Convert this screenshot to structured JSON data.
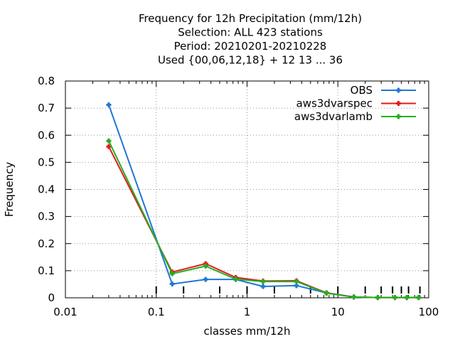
{
  "chart_data": {
    "type": "line",
    "title_lines": [
      "Frequency  for 12h Precipitation (mm/12h)",
      "Selection: ALL    423 stations",
      "Period: 20210201-20210228",
      "Used {00,06,12,18} + 12 13 ... 36"
    ],
    "xlabel": "classes mm/12h",
    "ylabel": "Frequency",
    "x_scale": "log",
    "xlim": [
      0.01,
      100
    ],
    "ylim": [
      0,
      0.8
    ],
    "x_ticks": [
      0.01,
      0.1,
      1,
      10,
      100
    ],
    "x_tick_labels": [
      "0.01",
      "0.1",
      "1",
      "10",
      "100"
    ],
    "y_ticks": [
      0,
      0.1,
      0.2,
      0.3,
      0.4,
      0.5,
      0.6,
      0.7,
      0.8
    ],
    "y_tick_labels": [
      "0",
      "0.1",
      "0.2",
      "0.3",
      "0.4",
      "0.5",
      "0.6",
      "0.7",
      "0.8"
    ],
    "grid": true,
    "legend_position": "top-right",
    "class_limits": [
      0.1,
      0.2,
      0.5,
      1,
      2,
      5,
      10,
      20,
      30,
      40,
      50,
      60,
      80
    ],
    "x": [
      0.03,
      0.15,
      0.35,
      0.75,
      1.5,
      3.5,
      7.5,
      15,
      27.5,
      42.5,
      57.5,
      77.5
    ],
    "series": [
      {
        "name": "OBS",
        "color": "#1f77d4",
        "values": [
          0.712,
          0.051,
          0.068,
          0.068,
          0.042,
          0.045,
          0.018,
          0.003,
          0.001,
          0.001,
          0.001,
          0.001
        ]
      },
      {
        "name": "aws3dvarspec",
        "color": "#e41a1c",
        "values": [
          0.558,
          0.095,
          0.126,
          0.075,
          0.062,
          0.063,
          0.018,
          0.003,
          0.001,
          0.001,
          0.001,
          0.001
        ]
      },
      {
        "name": "aws3dvarlamb",
        "color": "#21b021",
        "values": [
          0.579,
          0.089,
          0.117,
          0.069,
          0.06,
          0.06,
          0.017,
          0.003,
          0.001,
          0.001,
          0.001,
          0.001
        ]
      }
    ]
  }
}
